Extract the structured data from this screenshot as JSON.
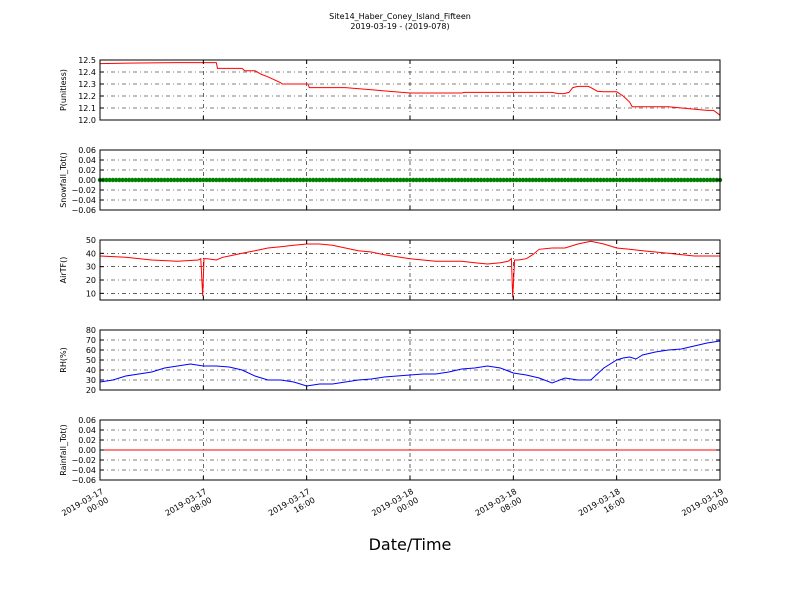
{
  "title": "Site14_Haber_Coney_Island_Fifteen",
  "subtitle": "2019-03-19 - (2019-078)",
  "xlabel": "Date/Time",
  "xticks": [
    {
      "t": 0,
      "line1": "2019-03-17",
      "line2": "00:00"
    },
    {
      "t": 8,
      "line1": "2019-03-17",
      "line2": "08:00"
    },
    {
      "t": 16,
      "line1": "2019-03-17",
      "line2": "16:00"
    },
    {
      "t": 24,
      "line1": "2019-03-18",
      "line2": "00:00"
    },
    {
      "t": 32,
      "line1": "2019-03-18",
      "line2": "08:00"
    },
    {
      "t": 40,
      "line1": "2019-03-18",
      "line2": "16:00"
    },
    {
      "t": 48,
      "line1": "2019-03-19",
      "line2": "00:00"
    }
  ],
  "chart_data": [
    {
      "type": "line",
      "ylabel": "P(unitless)",
      "color": "#ff0000",
      "ylim": [
        12.0,
        12.5
      ],
      "yticks": [
        12.0,
        12.1,
        12.2,
        12.3,
        12.4,
        12.5
      ],
      "ytick_labels": [
        "12.0",
        "12.1",
        "12.2",
        "12.3",
        "12.4",
        "12.5"
      ],
      "x": [
        0,
        3,
        6,
        9,
        9.1,
        11,
        11.2,
        12,
        12.5,
        13,
        14,
        14.1,
        15,
        16.1,
        16.2,
        18,
        19,
        24,
        24.2,
        28,
        28.2,
        29,
        35,
        35.5,
        35.9,
        36.3,
        36.6,
        37,
        37.2,
        37.8,
        38,
        38.5,
        39,
        40,
        40.5,
        41,
        41.2,
        44,
        47,
        47.5,
        48
      ],
      "y": [
        12.47,
        12.475,
        12.478,
        12.478,
        12.43,
        12.43,
        12.41,
        12.41,
        12.38,
        12.36,
        12.31,
        12.3,
        12.3,
        12.3,
        12.27,
        12.27,
        12.27,
        12.225,
        12.225,
        12.225,
        12.23,
        12.23,
        12.23,
        12.22,
        12.22,
        12.23,
        12.27,
        12.28,
        12.28,
        12.28,
        12.27,
        12.24,
        12.235,
        12.235,
        12.2,
        12.15,
        12.11,
        12.11,
        12.08,
        12.08,
        12.04
      ]
    },
    {
      "type": "scatter",
      "ylabel": "Snowfall_Tot()",
      "color": "#008000",
      "ylim": [
        -0.06,
        0.06
      ],
      "yticks": [
        -0.06,
        -0.04,
        -0.02,
        0.0,
        0.02,
        0.04,
        0.06
      ],
      "ytick_labels": [
        "−0.06",
        "−0.04",
        "−0.02",
        "0.00",
        "0.02",
        "0.04",
        "0.06"
      ],
      "x_range": [
        0,
        48
      ],
      "constant_value": 0.0,
      "interval_hours": 0.25
    },
    {
      "type": "line",
      "ylabel": "AirTF()",
      "color": "#ff0000",
      "ylim": [
        5,
        50
      ],
      "yticks": [
        10,
        20,
        30,
        40,
        50
      ],
      "ytick_labels": [
        "10",
        "20",
        "30",
        "40",
        "50"
      ],
      "x": [
        0,
        2,
        4,
        6,
        7.6,
        7.8,
        7.95,
        8.05,
        8.3,
        9,
        9.5,
        10,
        11,
        12,
        13,
        14,
        15,
        16,
        17,
        18,
        19,
        20,
        21,
        22,
        24,
        26,
        28,
        29,
        30,
        31,
        31.6,
        31.85,
        31.95,
        32.1,
        32.4,
        33,
        33.5,
        34,
        35,
        36,
        37,
        38,
        39,
        40,
        41,
        42,
        44,
        46,
        48
      ],
      "y": [
        38,
        37,
        35,
        34,
        35,
        36,
        8,
        36,
        36,
        35,
        37,
        38,
        40,
        42,
        44,
        45,
        46,
        47,
        47,
        46,
        44,
        42,
        41,
        39,
        36,
        34,
        34,
        33,
        32,
        33,
        34,
        36,
        7,
        35,
        35,
        36,
        39,
        43,
        44,
        44,
        47,
        49,
        47,
        44,
        43,
        42,
        40,
        38,
        38
      ]
    },
    {
      "type": "line",
      "ylabel": "RH(%)",
      "color": "#0000ff",
      "ylim": [
        20,
        80
      ],
      "yticks": [
        20,
        30,
        40,
        50,
        60,
        70,
        80
      ],
      "ytick_labels": [
        "20",
        "30",
        "40",
        "50",
        "60",
        "70",
        "80"
      ],
      "x": [
        0,
        1,
        2,
        3,
        4,
        5,
        6,
        7,
        8,
        9,
        10,
        11,
        12,
        13,
        14,
        15,
        16,
        17,
        18,
        19,
        20,
        21,
        22,
        23,
        24,
        25,
        26,
        27,
        28,
        29,
        30,
        31,
        32,
        33,
        34,
        35,
        36,
        37,
        38,
        39,
        40,
        40.5,
        41,
        41.5,
        42,
        43,
        44,
        45,
        46,
        47,
        48
      ],
      "y": [
        28,
        30,
        34,
        36,
        38,
        42,
        44,
        46,
        44,
        44,
        43,
        40,
        34,
        30,
        30,
        28,
        24,
        26,
        26,
        28,
        30,
        31,
        33,
        34,
        35,
        36,
        36,
        38,
        41,
        42,
        44,
        42,
        37,
        35,
        32,
        27,
        32,
        30,
        30,
        42,
        50,
        52,
        53,
        51,
        55,
        58,
        60,
        61,
        64,
        67,
        69
      ]
    },
    {
      "type": "line",
      "ylabel": "Rainfall_Tot()",
      "color": "#ff0000",
      "ylim": [
        -0.06,
        0.06
      ],
      "yticks": [
        -0.06,
        -0.04,
        -0.02,
        0.0,
        0.02,
        0.04,
        0.06
      ],
      "ytick_labels": [
        "−0.06",
        "−0.04",
        "−0.02",
        "0.00",
        "0.02",
        "0.04",
        "0.06"
      ],
      "x": [
        0,
        48
      ],
      "y": [
        0.0,
        0.0
      ]
    }
  ]
}
